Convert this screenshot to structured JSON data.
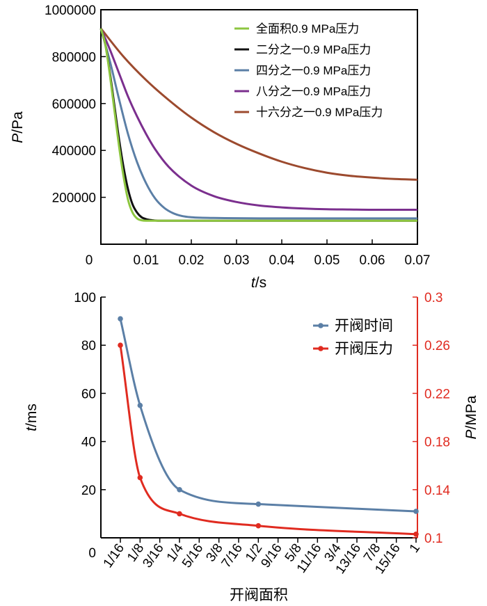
{
  "chart_data": [
    {
      "type": "line",
      "ylabel_italic": "P",
      "ylabel_unit": "/Pa",
      "xlabel_italic": "t",
      "xlabel_unit": "/s",
      "xlim": [
        0,
        0.07
      ],
      "ylim": [
        0,
        1000000
      ],
      "xticks": [
        0,
        0.01,
        0.02,
        0.03,
        0.04,
        0.05,
        0.06,
        0.07
      ],
      "xtick_labels": [
        "0",
        "0.01",
        "0.02",
        "0.03",
        "0.04",
        "0.05",
        "0.06",
        "0.07"
      ],
      "yticks": [
        200000,
        400000,
        600000,
        800000,
        1000000
      ],
      "ytick_labels": [
        "200000",
        "400000",
        "600000",
        "800000",
        "1000000"
      ],
      "legend_position": "top-right",
      "series": [
        {
          "name": "全面积0.9 MPa压力",
          "color": "#8dc63f",
          "x": [
            0,
            0.001,
            0.002,
            0.003,
            0.004,
            0.005,
            0.006,
            0.007,
            0.008,
            0.009,
            0.01,
            0.011,
            0.012,
            0.015,
            0.02,
            0.03,
            0.04,
            0.05,
            0.06,
            0.07
          ],
          "y": [
            920000,
            850000,
            720000,
            570000,
            420000,
            290000,
            190000,
            135000,
            110000,
            102000,
            100000,
            100000,
            100000,
            100000,
            100000,
            100000,
            100000,
            100000,
            100000,
            100000
          ]
        },
        {
          "name": "二分之一0.9 MPa压力",
          "color": "#111111",
          "x": [
            0,
            0.001,
            0.002,
            0.003,
            0.004,
            0.005,
            0.006,
            0.007,
            0.008,
            0.009,
            0.01,
            0.011,
            0.012,
            0.013,
            0.015,
            0.02,
            0.03,
            0.04,
            0.05,
            0.06,
            0.07
          ],
          "y": [
            920000,
            850000,
            730000,
            590000,
            450000,
            330000,
            235000,
            170000,
            135000,
            115000,
            107000,
            103000,
            101000,
            100000,
            100000,
            100000,
            100000,
            100000,
            100000,
            100000,
            100000
          ]
        },
        {
          "name": "四分之一0.9 MPa压力",
          "color": "#5b7fa6",
          "x": [
            0,
            0.002,
            0.004,
            0.006,
            0.008,
            0.01,
            0.012,
            0.014,
            0.016,
            0.018,
            0.02,
            0.022,
            0.025,
            0.03,
            0.04,
            0.05,
            0.06,
            0.07
          ],
          "y": [
            920000,
            780000,
            620000,
            470000,
            350000,
            260000,
            195000,
            155000,
            132000,
            120000,
            115000,
            113000,
            112000,
            111000,
            110000,
            110000,
            110000,
            110000
          ]
        },
        {
          "name": "八分之一0.9 MPa压力",
          "color": "#7b2f8e",
          "x": [
            0,
            0.002,
            0.004,
            0.006,
            0.008,
            0.01,
            0.012,
            0.015,
            0.02,
            0.025,
            0.03,
            0.035,
            0.04,
            0.045,
            0.05,
            0.055,
            0.06,
            0.065,
            0.07
          ],
          "y": [
            920000,
            830000,
            730000,
            630000,
            545000,
            470000,
            405000,
            330000,
            250000,
            205000,
            180000,
            165000,
            157000,
            152000,
            149000,
            148000,
            147000,
            147000,
            147000
          ]
        },
        {
          "name": "十六分之一0.9 MPa压力",
          "color": "#9c4a2e",
          "x": [
            0,
            0.005,
            0.01,
            0.015,
            0.02,
            0.025,
            0.03,
            0.035,
            0.04,
            0.045,
            0.05,
            0.055,
            0.06,
            0.065,
            0.07
          ],
          "y": [
            920000,
            800000,
            700000,
            615000,
            540000,
            478000,
            428000,
            387000,
            352000,
            325000,
            305000,
            292000,
            284000,
            278000,
            275000
          ]
        }
      ]
    },
    {
      "type": "line",
      "xlabel": "开阀面积",
      "ylabel_italic": "t",
      "ylabel_unit": "/ms",
      "y2label_italic": "P",
      "y2label_unit": "/MPa",
      "categories": [
        "1/16",
        "1/8",
        "3/16",
        "1/4",
        "5/16",
        "3/8",
        "7/16",
        "1/2",
        "9/16",
        "5/8",
        "11/16",
        "3/4",
        "13/16",
        "7/8",
        "15/16",
        "1"
      ],
      "ylim": [
        0,
        100
      ],
      "yticks": [
        0,
        20,
        40,
        60,
        80,
        100
      ],
      "ytick_labels": [
        "0",
        "20",
        "40",
        "60",
        "80",
        "100"
      ],
      "y2lim": [
        0.1,
        0.3
      ],
      "y2ticks": [
        0.1,
        0.14,
        0.18,
        0.22,
        0.26,
        0.3
      ],
      "y2tick_labels": [
        "0.1",
        "0.14",
        "0.18",
        "0.22",
        "0.26",
        "0.3"
      ],
      "y2_color": "#e02b20",
      "legend_position": "top-right",
      "series": [
        {
          "name": "开阀时间",
          "axis": "left",
          "color": "#5b7fa6",
          "x": [
            0.0625,
            0.125,
            0.25,
            0.5,
            1
          ],
          "y": [
            91,
            55,
            20,
            14,
            11
          ]
        },
        {
          "name": "开阀压力",
          "axis": "right",
          "color": "#e02b20",
          "x": [
            0.0625,
            0.125,
            0.25,
            0.5,
            1
          ],
          "y": [
            0.26,
            0.15,
            0.12,
            0.11,
            0.103
          ]
        }
      ]
    }
  ]
}
